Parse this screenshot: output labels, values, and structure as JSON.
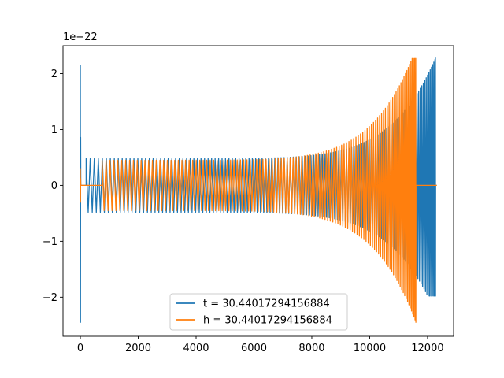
{
  "chart_data": {
    "type": "line",
    "title": "",
    "xlabel": "",
    "ylabel": "",
    "y_offset_label": "1e−22",
    "xlim": [
      -600,
      12900
    ],
    "ylim": [
      -2.7,
      2.5
    ],
    "xticks": [
      0,
      2000,
      4000,
      6000,
      8000,
      10000,
      12000
    ],
    "xtick_labels": [
      "0",
      "2000",
      "4000",
      "6000",
      "8000",
      "10000",
      "12000"
    ],
    "yticks": [
      -2,
      -1,
      0,
      1,
      2
    ],
    "ytick_labels": [
      "−2",
      "−1",
      "0",
      "1",
      "2"
    ],
    "grid": false,
    "legend_position": "lower-center",
    "series": [
      {
        "name": "t = 30.44017294156884",
        "color": "#1f77b4",
        "start_spike": {
          "x": 0,
          "max": 2.15,
          "min": -2.45
        },
        "zero_segment": [
          0,
          200
        ],
        "chirp": {
          "x_start": 200,
          "x_end": 12280,
          "amp_start": 0.48,
          "amp_peak": 2.28,
          "amp_min_peak": -1.98
        },
        "end_zero_segment": [
          12280,
          12320
        ]
      },
      {
        "name": "h = 30.44017294156884",
        "color": "#ff7f0e",
        "start_spike": {
          "x": 0,
          "max": 0.3,
          "min": -0.3
        },
        "zero_segment": [
          0,
          750
        ],
        "chirp": {
          "x_start": 0,
          "x_end": 11600,
          "amp_start": 0.45,
          "amp_peak": 2.27,
          "amp_min_peak": -2.45
        },
        "end_zero_segment": [
          11600,
          12320
        ]
      }
    ]
  }
}
